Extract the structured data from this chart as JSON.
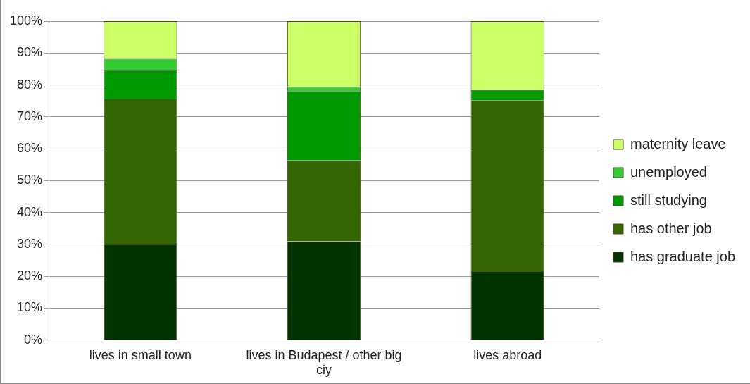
{
  "chart_data": {
    "type": "bar",
    "stacked": true,
    "categories": [
      "lives in small town",
      "lives in Budapest / other big ciy",
      "lives abroad"
    ],
    "series": [
      {
        "name": "has graduate job",
        "color": "#003300",
        "values": [
          30,
          31,
          21.6
        ]
      },
      {
        "name": "has other job",
        "color": "#336600",
        "values": [
          45.5,
          25.3,
          53.5
        ]
      },
      {
        "name": "still studying",
        "color": "#009900",
        "values": [
          9.1,
          21.8,
          3.3
        ]
      },
      {
        "name": "unemployed",
        "color": "#33cc33",
        "values": [
          3.6,
          1.3,
          0
        ]
      },
      {
        "name": "maternity leave",
        "color": "#ccff66",
        "values": [
          11.8,
          20.6,
          21.6
        ]
      }
    ],
    "ylim": [
      0,
      100
    ],
    "yticks": [
      {
        "value": 0,
        "label": "0%"
      },
      {
        "value": 10,
        "label": "10%"
      },
      {
        "value": 20,
        "label": "20%"
      },
      {
        "value": 30,
        "label": "30%"
      },
      {
        "value": 40,
        "label": "40%"
      },
      {
        "value": 50,
        "label": "50%"
      },
      {
        "value": 60,
        "label": "60%"
      },
      {
        "value": 70,
        "label": "70%"
      },
      {
        "value": 80,
        "label": "80%"
      },
      {
        "value": 90,
        "label": "90%"
      },
      {
        "value": 100,
        "label": "100%"
      }
    ],
    "grid": "y",
    "legend": "right"
  }
}
